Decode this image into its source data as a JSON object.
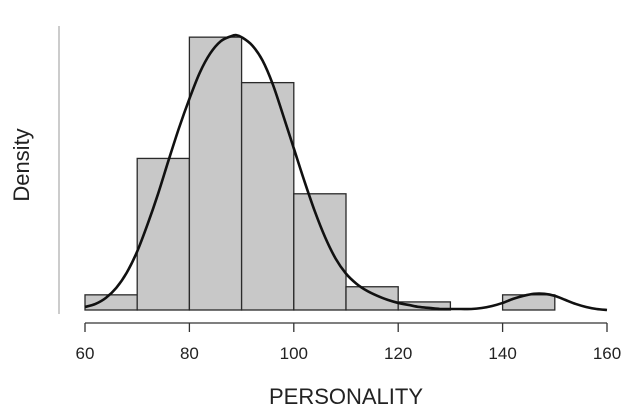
{
  "chart_data": {
    "type": "bar",
    "subtype": "histogram-with-density",
    "xlabel": "PERSONALITY",
    "ylabel": "Density",
    "xlim": [
      60,
      160
    ],
    "x_ticks": [
      "60",
      "80",
      "100",
      "120",
      "140",
      "160"
    ],
    "y_ticks_shown": false,
    "bins": [
      {
        "from": 60,
        "to": 70,
        "value": 0.0015
      },
      {
        "from": 70,
        "to": 80,
        "value": 0.015
      },
      {
        "from": 80,
        "to": 90,
        "value": 0.027
      },
      {
        "from": 90,
        "to": 100,
        "value": 0.0225
      },
      {
        "from": 100,
        "to": 110,
        "value": 0.0115
      },
      {
        "from": 110,
        "to": 120,
        "value": 0.0023
      },
      {
        "from": 120,
        "to": 130,
        "value": 0.0008
      },
      {
        "from": 130,
        "to": 140,
        "value": 0.0
      },
      {
        "from": 140,
        "to": 150,
        "value": 0.0015
      },
      {
        "from": 150,
        "to": 160,
        "value": 0.0
      }
    ],
    "density_curve": {
      "x": [
        60,
        62,
        64,
        66,
        68,
        70,
        72,
        74,
        76,
        78,
        80,
        82,
        84,
        86,
        88,
        89,
        90,
        92,
        94,
        96,
        98,
        100,
        102,
        104,
        106,
        108,
        110,
        112,
        114,
        116,
        118,
        120,
        122,
        124,
        126,
        128,
        130,
        132,
        134,
        136,
        138,
        140,
        142,
        144,
        146,
        148,
        150,
        152,
        154,
        156,
        158,
        160
      ],
      "y": [
        0.0003,
        0.0006,
        0.0012,
        0.0022,
        0.0037,
        0.0058,
        0.0085,
        0.0115,
        0.0148,
        0.018,
        0.0209,
        0.0235,
        0.0254,
        0.0266,
        0.0271,
        0.0272,
        0.027,
        0.0262,
        0.0247,
        0.0223,
        0.0192,
        0.016,
        0.0128,
        0.0098,
        0.0072,
        0.0051,
        0.0036,
        0.0026,
        0.0019,
        0.0014,
        0.001,
        0.0007,
        0.0005,
        0.0003,
        0.0002,
        0.0001,
        0.0001,
        0.0001,
        0.0001,
        0.0002,
        0.0004,
        0.0007,
        0.0011,
        0.0014,
        0.0016,
        0.0016,
        0.0014,
        0.001,
        0.0006,
        0.0003,
        0.0001,
        0.0
      ]
    },
    "ylim": [
      0,
      0.0285
    ],
    "colors": {
      "bar_fill": "#c8c8c8",
      "bar_stroke": "#2a2a2a",
      "curve": "#111111",
      "axis": "#333333",
      "yaxis_line": "#aaaaaa"
    },
    "grid": false,
    "legend": "none"
  }
}
